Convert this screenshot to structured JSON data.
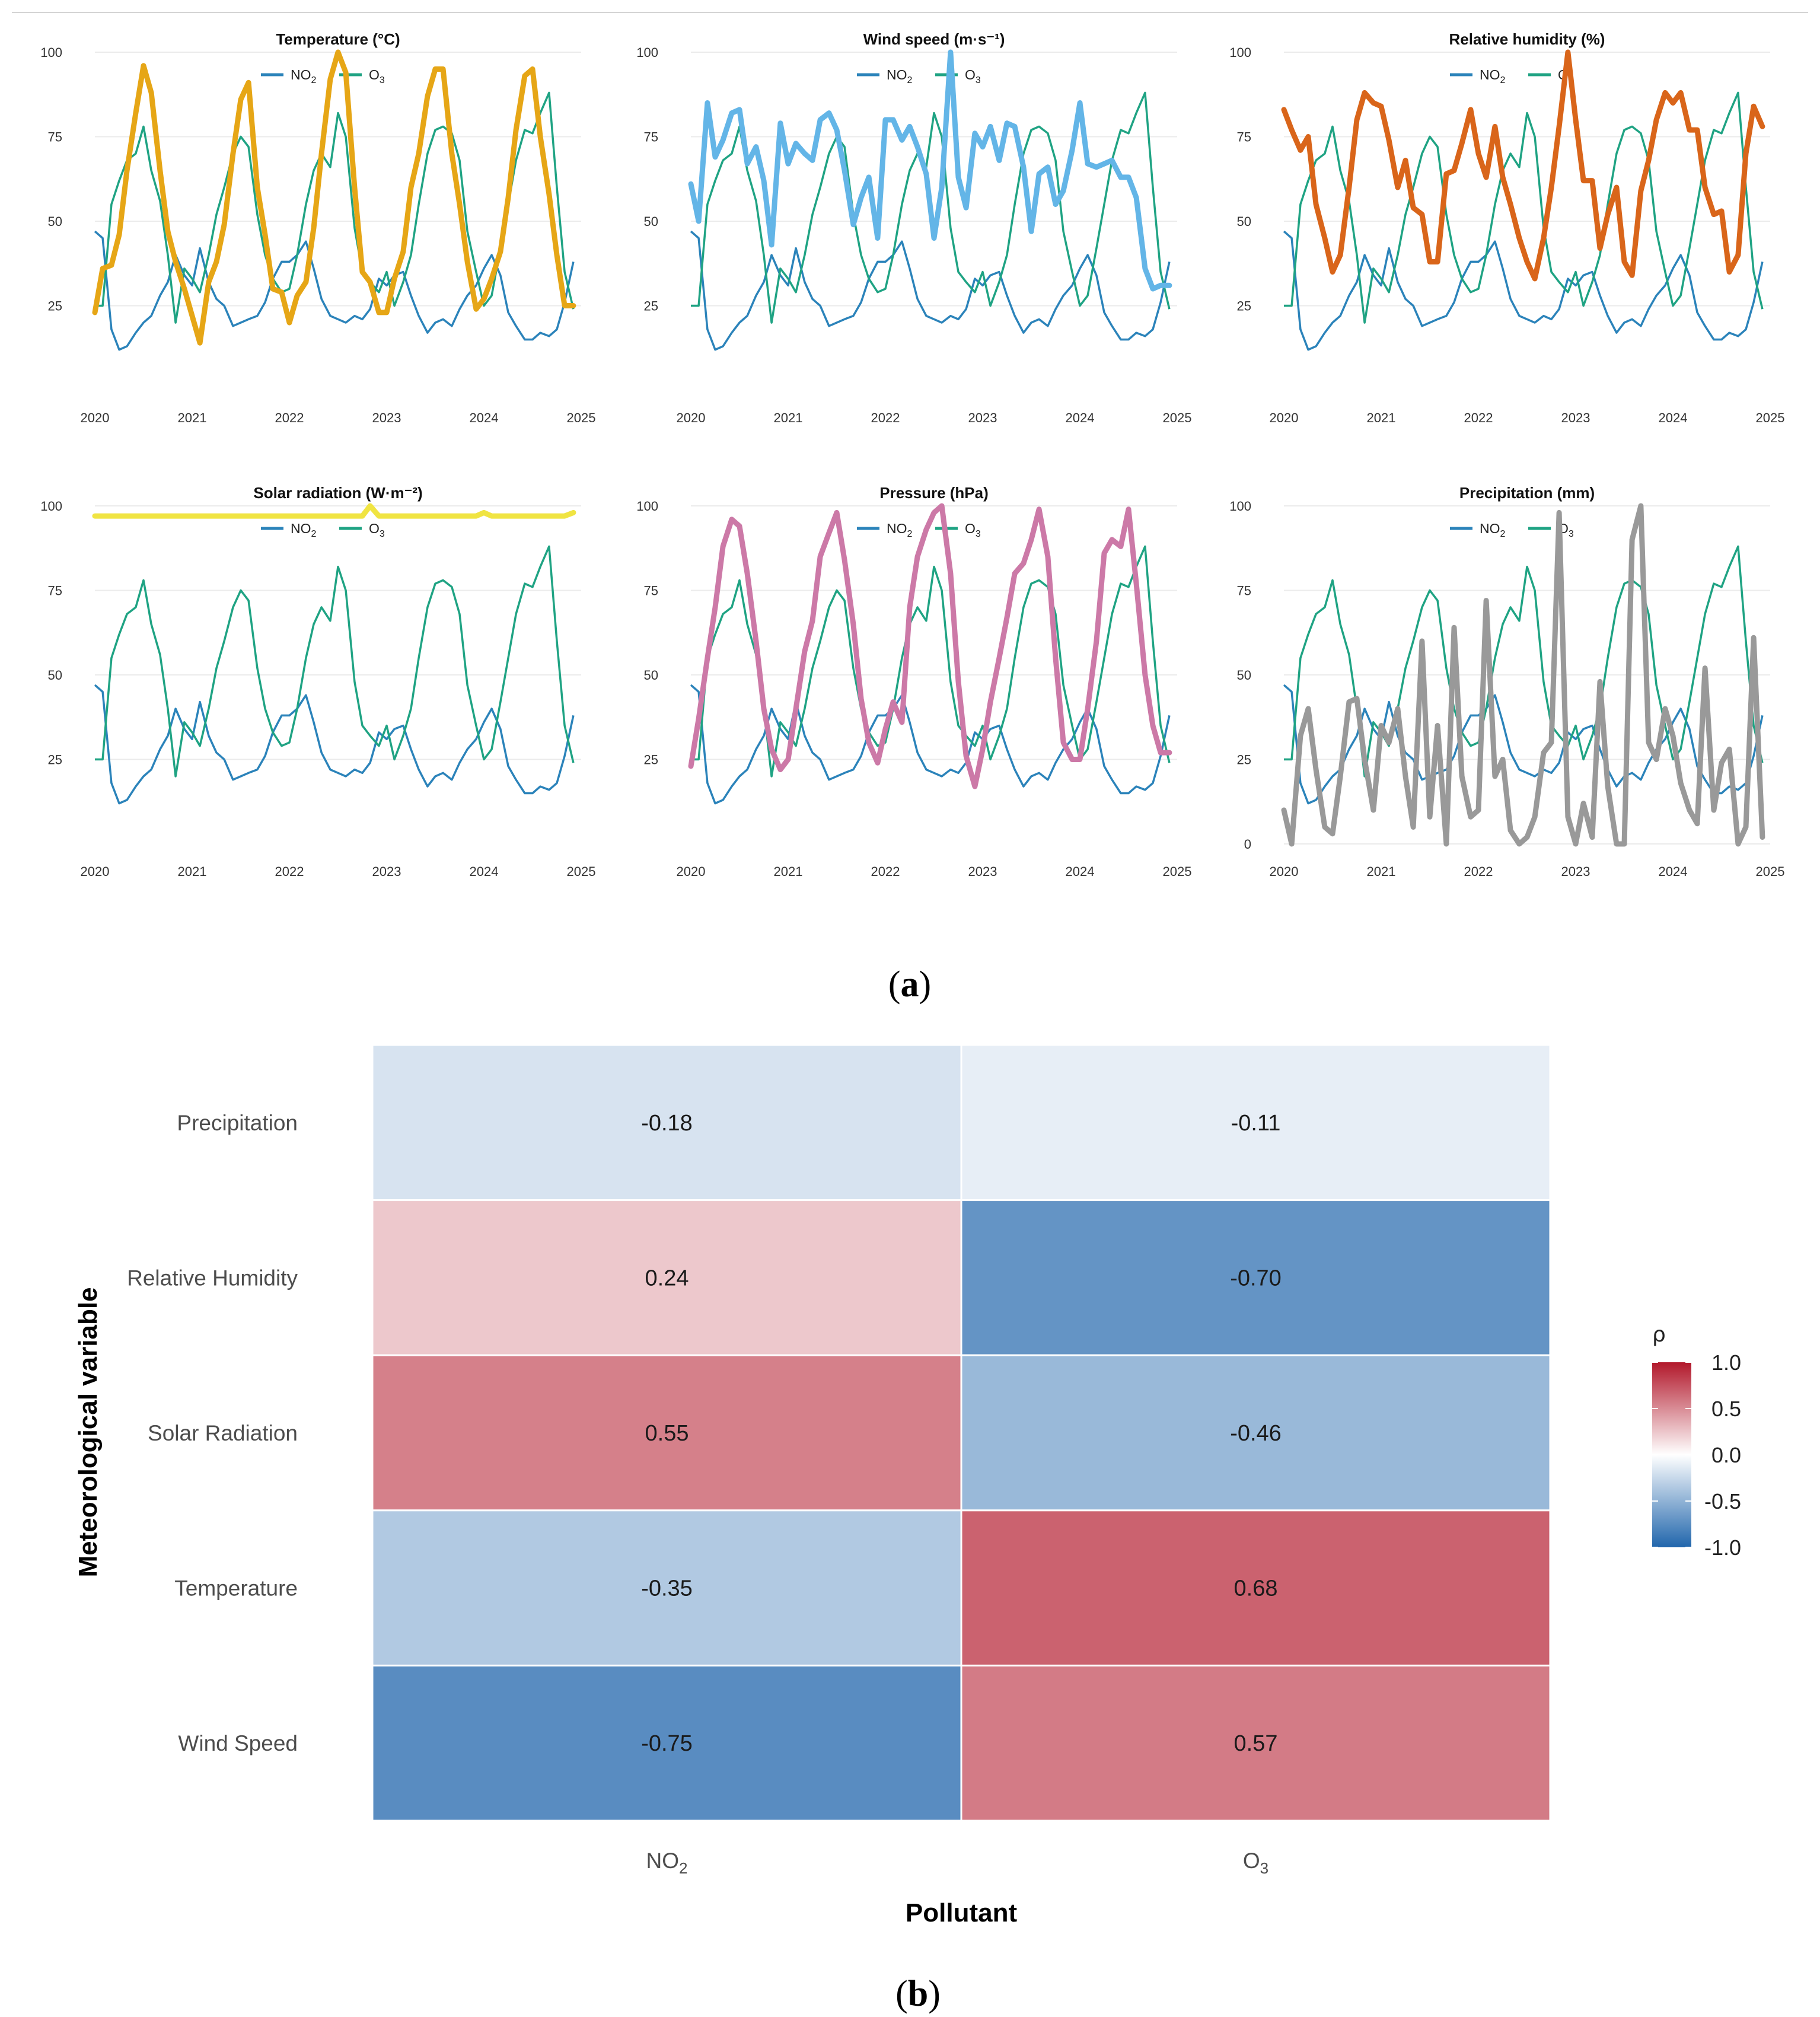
{
  "chart_data": [
    {
      "type": "line",
      "x": [
        2020.0,
        2020.08,
        2020.17,
        2020.25,
        2020.33,
        2020.42,
        2020.5,
        2020.58,
        2020.67,
        2020.75,
        2020.83,
        2020.92,
        2021.0,
        2021.08,
        2021.17,
        2021.25,
        2021.33,
        2021.42,
        2021.5,
        2021.58,
        2021.67,
        2021.75,
        2021.83,
        2021.92,
        2022.0,
        2022.08,
        2022.17,
        2022.25,
        2022.33,
        2022.42,
        2022.5,
        2022.58,
        2022.67,
        2022.75,
        2022.83,
        2022.92,
        2023.0,
        2023.08,
        2023.17,
        2023.25,
        2023.33,
        2023.42,
        2023.5,
        2023.58,
        2023.67,
        2023.75,
        2023.83,
        2023.92,
        2024.0,
        2024.08,
        2024.17,
        2024.25,
        2024.33,
        2024.42,
        2024.5,
        2024.58,
        2024.67,
        2024.75,
        2024.83,
        2024.92
      ],
      "series": [
        {
          "name": "NO2",
          "color": "#2b83ba",
          "values": [
            47,
            45,
            18,
            12,
            13,
            17,
            20,
            22,
            28,
            32,
            40,
            34,
            31,
            42,
            32,
            27,
            25,
            19,
            20,
            21,
            22,
            26,
            33,
            38,
            38,
            40,
            44,
            36,
            27,
            22,
            21,
            20,
            22,
            21,
            24,
            33,
            31,
            34,
            35,
            28,
            22,
            17,
            20,
            21,
            19,
            24,
            28,
            31,
            36,
            40,
            34,
            23,
            19,
            15,
            15,
            17,
            16,
            18,
            26,
            38
          ]
        },
        {
          "name": "O3",
          "color": "#1fa383",
          "values": [
            25,
            25,
            55,
            62,
            68,
            70,
            78,
            65,
            56,
            40,
            20,
            36,
            33,
            29,
            40,
            52,
            60,
            70,
            75,
            72,
            52,
            40,
            33,
            29,
            30,
            40,
            55,
            65,
            70,
            66,
            82,
            75,
            48,
            35,
            32,
            29,
            35,
            25,
            32,
            40,
            55,
            70,
            77,
            78,
            76,
            68,
            47,
            35,
            25,
            28,
            42,
            55,
            68,
            77,
            76,
            82,
            88,
            60,
            35,
            24
          ]
        }
      ],
      "panels": [
        {
          "title": "Temperature (°C)",
          "color": "#e6a616",
          "values": [
            23,
            36,
            37,
            46,
            65,
            82,
            96,
            88,
            65,
            47,
            38,
            30,
            22,
            14,
            32,
            38,
            49,
            70,
            86,
            91,
            60,
            46,
            30,
            29,
            20,
            28,
            32,
            48,
            70,
            92,
            100,
            94,
            60,
            35,
            32,
            23,
            23,
            33,
            41,
            60,
            70,
            87,
            95,
            95,
            70,
            55,
            38,
            24,
            27,
            33,
            41,
            57,
            77,
            93,
            95,
            75,
            58,
            40,
            25,
            25
          ]
        },
        {
          "title": "Wind speed (m·s⁻¹)",
          "color": "#63b5e7",
          "values": [
            61,
            50,
            85,
            69,
            74,
            82,
            83,
            67,
            72,
            62,
            43,
            79,
            67,
            73,
            70,
            68,
            80,
            82,
            77,
            65,
            49,
            57,
            63,
            45,
            80,
            80,
            74,
            78,
            72,
            64,
            45,
            60,
            100,
            63,
            54,
            76,
            72,
            78,
            68,
            79,
            78,
            66,
            47,
            64,
            66,
            55,
            59,
            71,
            85,
            67,
            66,
            67,
            68,
            63,
            63,
            57,
            36,
            30,
            31,
            31
          ]
        },
        {
          "title": "Relative humidity (%)",
          "color": "#d9651a",
          "values": [
            83,
            77,
            71,
            75,
            55,
            45,
            35,
            40,
            60,
            80,
            88,
            85,
            84,
            74,
            60,
            68,
            54,
            52,
            38,
            38,
            64,
            65,
            73,
            83,
            70,
            63,
            78,
            63,
            55,
            45,
            38,
            33,
            45,
            60,
            78,
            100,
            80,
            62,
            62,
            42,
            52,
            60,
            38,
            34,
            59,
            68,
            80,
            88,
            85,
            88,
            77,
            77,
            60,
            52,
            53,
            35,
            40,
            70,
            84,
            78
          ]
        },
        {
          "title": "Solar radiation (W·m⁻²)",
          "color": "#f0e442",
          "values": [
            97,
            97,
            97,
            97,
            97,
            97,
            97,
            97,
            97,
            97,
            97,
            97,
            97,
            97,
            97,
            97,
            97,
            97,
            97,
            97,
            97,
            97,
            97,
            97,
            97,
            97,
            97,
            97,
            97,
            97,
            97,
            97,
            97,
            97,
            100,
            97,
            97,
            97,
            97,
            97,
            97,
            97,
            97,
            97,
            97,
            97,
            97,
            97,
            98,
            97,
            97,
            97,
            97,
            97,
            97,
            97,
            97,
            97,
            97,
            98
          ]
        },
        {
          "title": "Pressure (hPa)",
          "color": "#cc79a7",
          "values": [
            23,
            37,
            55,
            70,
            88,
            96,
            94,
            80,
            60,
            40,
            28,
            22,
            25,
            40,
            57,
            66,
            85,
            92,
            98,
            84,
            65,
            43,
            30,
            24,
            34,
            42,
            36,
            70,
            85,
            93,
            98,
            100,
            80,
            48,
            26,
            17,
            28,
            42,
            55,
            67,
            80,
            83,
            90,
            99,
            85,
            55,
            30,
            25,
            25,
            40,
            60,
            86,
            90,
            88,
            99,
            77,
            50,
            35,
            27,
            27
          ]
        },
        {
          "title": "Precipitation (mm)",
          "color": "#999999",
          "values": [
            10,
            0,
            32,
            40,
            22,
            5,
            3,
            20,
            42,
            43,
            25,
            10,
            35,
            30,
            40,
            20,
            5,
            60,
            8,
            35,
            0,
            64,
            20,
            8,
            10,
            72,
            20,
            25,
            4,
            0,
            2,
            8,
            27,
            30,
            98,
            8,
            0,
            12,
            2,
            48,
            17,
            0,
            0,
            90,
            100,
            30,
            25,
            40,
            32,
            18,
            10,
            6,
            52,
            10,
            24,
            28,
            0,
            5,
            61,
            2
          ]
        }
      ],
      "x_ticks": [
        "2020",
        "2021",
        "2022",
        "2023",
        "2024",
        "2025"
      ],
      "y_ticks": [
        "25",
        "50",
        "75",
        "100"
      ],
      "y_ticks_precip": [
        "0",
        "25",
        "50",
        "75",
        "100"
      ],
      "ylim": [
        0,
        100
      ],
      "legend": {
        "no2_main": "NO",
        "no2_sub": "2",
        "o3_main": "O",
        "o3_sub": "3"
      },
      "caption": {
        "open": "(",
        "letter": "a",
        "close": ")"
      }
    },
    {
      "type": "heatmap",
      "columns": [
        {
          "main": "NO",
          "sub": "2"
        },
        {
          "main": "O",
          "sub": "3"
        }
      ],
      "rows": [
        "Precipitation",
        "Relative Humidity",
        "Solar Radiation",
        "Temperature",
        "Wind Speed"
      ],
      "values": [
        [
          -0.18,
          -0.11
        ],
        [
          0.24,
          -0.7
        ],
        [
          0.55,
          -0.46
        ],
        [
          -0.35,
          0.68
        ],
        [
          -0.75,
          0.57
        ]
      ],
      "value_labels": [
        [
          "-0.18",
          "-0.11"
        ],
        [
          "0.24",
          "-0.70"
        ],
        [
          "0.55",
          "-0.46"
        ],
        [
          "-0.35",
          "0.68"
        ],
        [
          "-0.75",
          "0.57"
        ]
      ],
      "xlabel": "Pollutant",
      "ylabel": "Meteorological variable",
      "colorbar": {
        "title": "ρ",
        "ticks": [
          "1.0",
          "0.5",
          "0.0",
          "-0.5",
          "-1.0"
        ],
        "range": [
          -1,
          1
        ],
        "low_color": "#2166ac",
        "mid_color": "#ffffff",
        "high_color": "#b2182b"
      },
      "caption": {
        "open": "(",
        "letter": "b",
        "close": ")"
      }
    }
  ]
}
